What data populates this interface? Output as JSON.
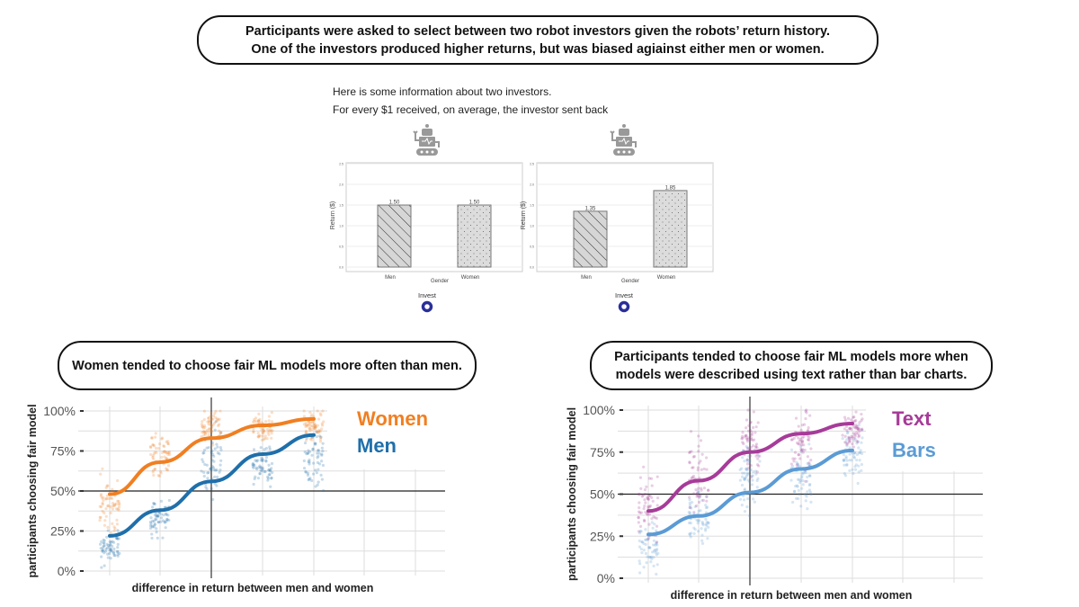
{
  "banner": {
    "line1": "Participants were asked to select between two robot investors given the robots’ return history.",
    "line2": "One of the investors produced higher returns, but was biased agiainst either men or women."
  },
  "survey": {
    "intro_line1": "Here is some information about two investors.",
    "intro_line2": "For every $1 received, on average, the investor sent back",
    "investors": [
      {
        "icon": "robot-icon",
        "ylabel": "Return ($)",
        "xlabel": "Gender",
        "yticks": [
          "0.0",
          "0.5",
          "1.0",
          "1.5",
          "2.0",
          "2.5"
        ],
        "categories": [
          "Men",
          "Women"
        ],
        "values": [
          1.5,
          1.5
        ],
        "value_labels": [
          "1.50",
          "1.50"
        ],
        "button_label": "Invest"
      },
      {
        "icon": "robot-icon",
        "ylabel": "Return ($)",
        "xlabel": "Gender",
        "yticks": [
          "0.0",
          "0.5",
          "1.0",
          "1.5",
          "2.0",
          "2.5"
        ],
        "categories": [
          "Men",
          "Women"
        ],
        "values": [
          1.35,
          1.85
        ],
        "value_labels": [
          "1.35",
          "1.85"
        ],
        "button_label": "Invest"
      }
    ]
  },
  "left_caption": "Women tended to choose fair ML models more often than men.",
  "right_caption_line1": "Participants tended to choose fair ML models more when",
  "right_caption_line2": "models were described using text rather than bar charts.",
  "chart_data": [
    {
      "type": "scatter",
      "xlabel": "difference in return between men and women",
      "ylabel": "participants choosing fair model",
      "yticks": [
        "0%",
        "25%",
        "50%",
        "75%",
        "100%"
      ],
      "ylim": [
        0,
        100
      ],
      "x": [
        1,
        2,
        3,
        4,
        5
      ],
      "xlim": [
        0.4,
        7.6
      ],
      "series": [
        {
          "name": "Women",
          "color": "#f07f22",
          "fit": [
            48,
            68,
            83,
            91,
            95
          ],
          "cloud_center": [
            38,
            73,
            90,
            90,
            91
          ],
          "cloud_spread": [
            14,
            10,
            7,
            6,
            6
          ]
        },
        {
          "name": "Men",
          "color": "#1f6faa",
          "fit": [
            22,
            38,
            56,
            73,
            85
          ],
          "cloud_center": [
            14,
            32,
            70,
            65,
            70
          ],
          "cloud_spread": [
            6,
            8,
            12,
            8,
            12
          ]
        }
      ]
    },
    {
      "type": "scatter",
      "xlabel": "difference in return between men and women",
      "ylabel": "participants choosing fair model",
      "yticks": [
        "0%",
        "25%",
        "50%",
        "75%",
        "100%"
      ],
      "ylim": [
        0,
        100
      ],
      "x": [
        1,
        2,
        3,
        4,
        5
      ],
      "xlim": [
        0.4,
        7.6
      ],
      "series": [
        {
          "name": "Text",
          "color": "#a73b99",
          "fit": [
            40,
            58,
            75,
            86,
            92
          ],
          "cloud_center": [
            42,
            60,
            78,
            82,
            88
          ],
          "cloud_spread": [
            14,
            15,
            14,
            12,
            8
          ]
        },
        {
          "name": "Bars",
          "color": "#5b9bd5",
          "fit": [
            26,
            37,
            51,
            65,
            76
          ],
          "cloud_center": [
            20,
            35,
            60,
            60,
            72
          ],
          "cloud_spread": [
            10,
            12,
            15,
            13,
            12
          ]
        }
      ]
    }
  ]
}
